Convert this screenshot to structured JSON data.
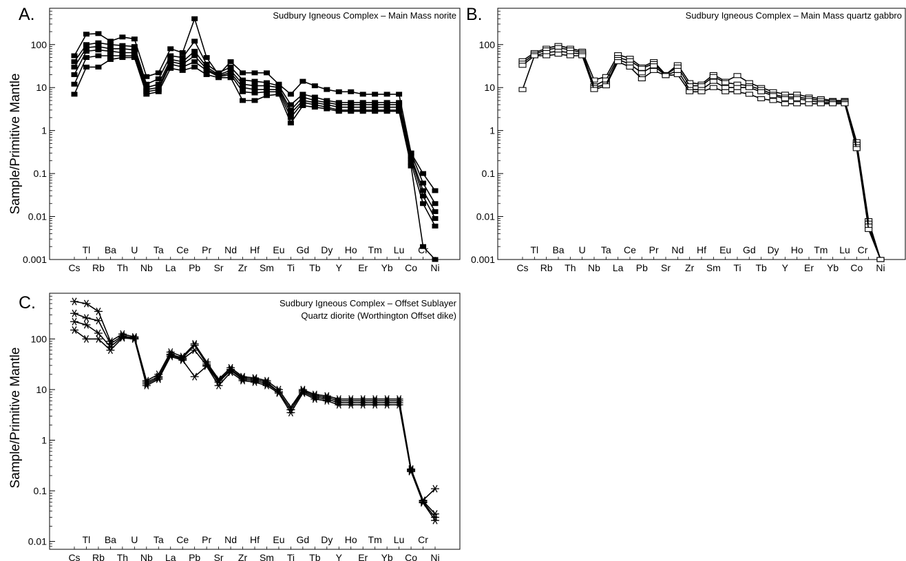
{
  "chart_data": [
    {
      "panel": "A.",
      "title": [
        "Sudbury Igneous Complex – Main Mass norite"
      ],
      "type": "line",
      "ylabel": "Sample/Primitive Mantle",
      "yscale": "log",
      "ylim": [
        0.001,
        700
      ],
      "yticks": [
        {
          "value": 0.001,
          "label": "0.001"
        },
        {
          "value": 0.01,
          "label": "0.01"
        },
        {
          "value": 0.1,
          "label": "0.1"
        },
        {
          "value": 1,
          "label": "1"
        },
        {
          "value": 10,
          "label": "10"
        },
        {
          "value": 100,
          "label": "100"
        }
      ],
      "categories": [
        "Cs",
        "Tl",
        "Rb",
        "Ba",
        "Th",
        "U",
        "Nb",
        "Ta",
        "La",
        "Ce",
        "Pb",
        "Pr",
        "Sr",
        "Nd",
        "Zr",
        "Hf",
        "Sm",
        "Eu",
        "Ti",
        "Gd",
        "Tb",
        "Dy",
        "Y",
        "Ho",
        "Er",
        "Tm",
        "Yb",
        "Lu",
        "Co",
        "Cr",
        "Ni"
      ],
      "marker": "filled-square",
      "series": [
        {
          "values": [
            55,
            175,
            180,
            120,
            150,
            135,
            18,
            22,
            80,
            65,
            400,
            50,
            20,
            40,
            22,
            22,
            22,
            12,
            7,
            14,
            11,
            9,
            8,
            8,
            7,
            7,
            7,
            7,
            0.3,
            0.1,
            0.04
          ]
        },
        {
          "values": [
            40,
            100,
            110,
            100,
            95,
            90,
            12,
            16,
            55,
            50,
            120,
            35,
            22,
            30,
            15,
            14,
            13,
            11,
            4,
            7,
            6,
            5,
            4.5,
            4.5,
            4.5,
            4.5,
            4.5,
            4.5,
            0.3,
            0.06,
            0.02
          ]
        },
        {
          "values": [
            30,
            85,
            90,
            80,
            80,
            75,
            10,
            12,
            45,
            40,
            70,
            30,
            20,
            25,
            12,
            11,
            11,
            10,
            3,
            6,
            5,
            4.5,
            4,
            4,
            4,
            4,
            4,
            4,
            0.25,
            0.04,
            0.013
          ]
        },
        {
          "values": [
            20,
            70,
            75,
            70,
            65,
            65,
            9,
            10,
            40,
            35,
            55,
            27,
            19,
            22,
            10,
            9,
            9,
            9,
            2.5,
            5,
            4.5,
            4,
            3.5,
            3.5,
            3.5,
            3.5,
            3.5,
            3.5,
            0.22,
            0.03,
            0.009
          ]
        },
        {
          "values": [
            12,
            50,
            55,
            55,
            55,
            55,
            8,
            9,
            35,
            30,
            40,
            25,
            18,
            20,
            8,
            7.5,
            8,
            8,
            2,
            4.5,
            4,
            3.5,
            3,
            3,
            3,
            3,
            3,
            3,
            0.18,
            0.02,
            0.006
          ]
        },
        {
          "values": [
            7,
            30,
            30,
            45,
            50,
            50,
            7,
            8,
            28,
            25,
            30,
            20,
            17,
            17,
            5,
            5,
            6.5,
            7,
            1.5,
            3.8,
            3.5,
            3.2,
            2.8,
            2.8,
            2.8,
            2.8,
            2.8,
            2.8,
            0.15,
            0.002,
            0.001
          ]
        }
      ]
    },
    {
      "panel": "B.",
      "title": [
        "Sudbury Igneous Complex – Main Mass quartz gabbro"
      ],
      "type": "line",
      "ylabel": "",
      "yscale": "log",
      "ylim": [
        0.001,
        700
      ],
      "yticks": [
        {
          "value": 0.001,
          "label": "0.001"
        },
        {
          "value": 0.01,
          "label": "0.01"
        },
        {
          "value": 0.1,
          "label": "0.1"
        },
        {
          "value": 1,
          "label": "1"
        },
        {
          "value": 10,
          "label": "10"
        },
        {
          "value": 100,
          "label": "100"
        }
      ],
      "categories": [
        "Cs",
        "Tl",
        "Rb",
        "Ba",
        "Th",
        "U",
        "Nb",
        "Ta",
        "La",
        "Ce",
        "Pb",
        "Pr",
        "Sr",
        "Nd",
        "Zr",
        "Hf",
        "Sm",
        "Eu",
        "Ti",
        "Gd",
        "Tb",
        "Dy",
        "Y",
        "Ho",
        "Er",
        "Tm",
        "Yb",
        "Lu",
        "Co",
        "Cr",
        "Ni"
      ],
      "hidden_tick_labels": [
        "Cr"
      ],
      "extra_labels": [
        {
          "text": "Cr",
          "at": "Co",
          "offset": 0.5
        }
      ],
      "marker": "open-square",
      "series": [
        {
          "values": [
            42,
            65,
            82,
            95,
            82,
            70,
            15,
            18,
            58,
            48,
            30,
            40,
            20,
            34,
            13,
            12,
            20,
            14,
            19,
            13,
            10,
            8,
            7,
            7,
            6,
            5.5,
            5,
            5,
            0.55,
            0.008,
            0.001
          ]
        },
        {
          "values": [
            37,
            60,
            75,
            85,
            75,
            65,
            11,
            15,
            50,
            42,
            28,
            36,
            20,
            30,
            11,
            11,
            18,
            13,
            12,
            11,
            9,
            7,
            6,
            6,
            5.5,
            5,
            4.8,
            4.8,
            0.48,
            0.007,
            0.001
          ]
        },
        {
          "values": [
            33,
            55,
            65,
            70,
            65,
            60,
            10,
            12,
            45,
            35,
            22,
            32,
            19,
            25,
            9,
            9,
            14,
            10,
            10,
            10,
            8,
            6.5,
            5.5,
            5.5,
            5,
            4.5,
            4.5,
            4.5,
            0.42,
            0.006,
            0.001
          ]
        },
        {
          "values": [
            9,
            55,
            55,
            60,
            55,
            55,
            9,
            11,
            40,
            30,
            16,
            25,
            19,
            20,
            8,
            8,
            10,
            8,
            8,
            7,
            5.5,
            5,
            4.2,
            4.2,
            4.2,
            4.2,
            4.2,
            4.2,
            0.38,
            0.005,
            0.001
          ]
        }
      ]
    },
    {
      "panel": "C.",
      "title": [
        "Sudbury Igneous Complex – Offset Sublayer",
        "Quartz diorite (Worthington Offset dike)"
      ],
      "type": "line",
      "ylabel": "Sample/Primitive Mantle",
      "yscale": "log",
      "ylim": [
        0.007,
        800
      ],
      "yticks": [
        {
          "value": 0.01,
          "label": "0.01"
        },
        {
          "value": 0.1,
          "label": "0.1"
        },
        {
          "value": 1,
          "label": "1"
        },
        {
          "value": 10,
          "label": "10"
        },
        {
          "value": 100,
          "label": "100"
        }
      ],
      "categories": [
        "Cs",
        "Tl",
        "Rb",
        "Ba",
        "Th",
        "U",
        "Nb",
        "Ta",
        "La",
        "Ce",
        "Pb",
        "Pr",
        "Sr",
        "Nd",
        "Zr",
        "Hf",
        "Sm",
        "Eu",
        "Ti",
        "Gd",
        "Tb",
        "Dy",
        "Y",
        "Ho",
        "Er",
        "Tm",
        "Yb",
        "Lu",
        "Co",
        "Cr",
        "Ni"
      ],
      "marker": "asterisk",
      "series": [
        {
          "values": [
            550,
            500,
            350,
            90,
            125,
            110,
            15,
            20,
            55,
            45,
            80,
            35,
            16,
            27,
            18,
            17,
            15,
            10,
            4.5,
            10,
            8,
            7.5,
            6.5,
            6.5,
            6.5,
            6.5,
            6.5,
            6.5,
            0.27,
            0.065,
            0.11
          ]
        },
        {
          "values": [
            320,
            260,
            230,
            80,
            115,
            105,
            14,
            18,
            50,
            42,
            75,
            32,
            15,
            25,
            17,
            16,
            14,
            9,
            4,
            9.5,
            7.5,
            7,
            6,
            6,
            6,
            6,
            6,
            6,
            0.26,
            0.063,
            0.035
          ]
        },
        {
          "values": [
            220,
            190,
            130,
            70,
            110,
            100,
            13,
            17,
            48,
            40,
            60,
            30,
            14,
            24,
            16,
            15,
            13,
            9,
            4,
            9,
            7,
            6.5,
            5.5,
            5.5,
            5.5,
            5.5,
            5.5,
            5.5,
            0.25,
            0.06,
            0.03
          ]
        },
        {
          "values": [
            150,
            100,
            100,
            60,
            105,
            100,
            12,
            16,
            45,
            38,
            18,
            29,
            12,
            22,
            15,
            14,
            12,
            8.5,
            3.5,
            8.5,
            6.5,
            6,
            5,
            5,
            5,
            5,
            5,
            5,
            0.24,
            0.058,
            0.026
          ]
        }
      ]
    }
  ]
}
